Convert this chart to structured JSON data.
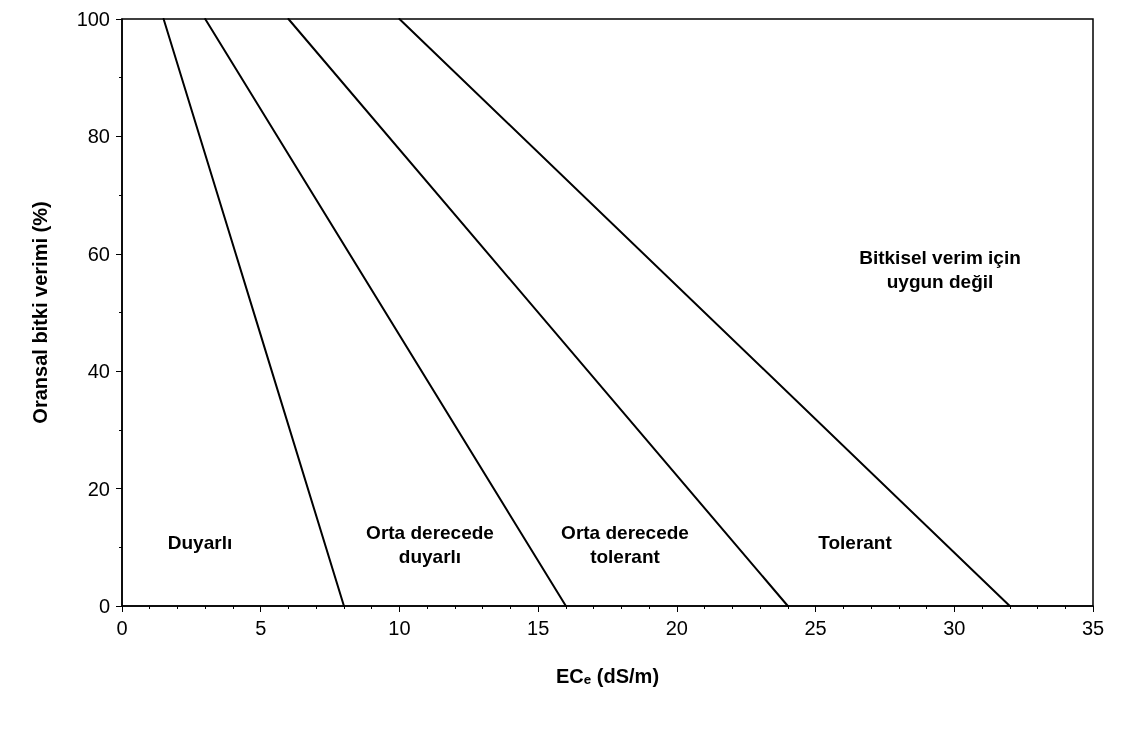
{
  "chart_data": {
    "type": "line",
    "xlabel": "ECₑ (dS/m)",
    "ylabel": "Oransal bitki verimi (%)",
    "series": [
      {
        "color": "#000000",
        "x": [
          1.5,
          8
        ],
        "values": [
          100,
          0
        ]
      },
      {
        "color": "#000000",
        "x": [
          3,
          16
        ],
        "values": [
          100,
          0
        ]
      },
      {
        "color": "#000000",
        "x": [
          6,
          24
        ],
        "values": [
          100,
          0
        ]
      },
      {
        "color": "#000000",
        "x": [
          10,
          32
        ],
        "values": [
          100,
          0
        ]
      }
    ],
    "xlim": [
      0,
      35
    ],
    "xticks": [
      0,
      5,
      10,
      15,
      20,
      25,
      30,
      35
    ],
    "ylim": [
      0,
      100
    ],
    "yticks": [
      0,
      20,
      40,
      60,
      80,
      100
    ],
    "grid": false,
    "marker": "none",
    "line_style": "solid",
    "annotations": [
      "Duyarlı",
      "Orta derecede\nduyarlı",
      "Orta derecede\ntolerant",
      "Tolerant",
      "Bitkisel verim için\nuygun değil"
    ]
  }
}
